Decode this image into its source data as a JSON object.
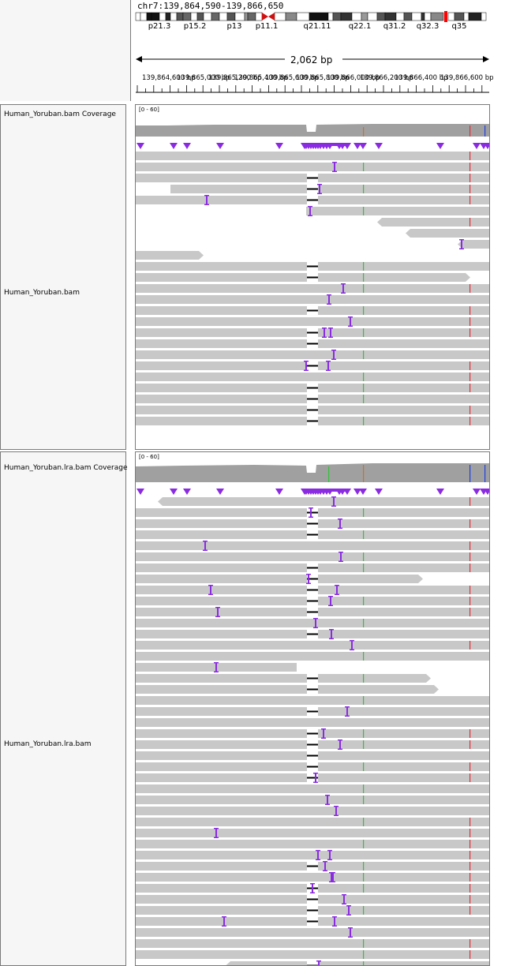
{
  "header": {
    "locus": "chr7:139,864,590-139,866,650",
    "span_label": "2,062 bp"
  },
  "ideogram": {
    "bands": [
      "p21.3",
      "p15.2",
      "p13",
      "p11.1",
      "q21.11",
      "q22.1",
      "q31.2",
      "q32.3",
      "q35"
    ]
  },
  "ruler": {
    "ticks": [
      "139,864,600 bp",
      "139,865,000 bp",
      "139,865,200 bp",
      "139,865,400 bp",
      "139,865,600 bp",
      "139,865,800 bp",
      "139,866,000 bp",
      "139,866,200 bp",
      "139,866,400 bp",
      "139,866,600 bp"
    ]
  },
  "tracks": [
    {
      "coverage_name": "Human_Yoruban.bam Coverage",
      "alignment_name": "Human_Yoruban.bam",
      "range": "[0 - 60]"
    },
    {
      "coverage_name": "Human_Yoruban.lra.bam Coverage",
      "alignment_name": "Human_Yoruban.lra.bam",
      "range": "[0 - 60]"
    }
  ],
  "colors": {
    "read": "#c8c8c8",
    "coverage": "#a0a0a0",
    "insertion": "#8a2be2",
    "mismatch_red": "#e0303a",
    "mismatch_green": "#35c03a",
    "mismatch_blue": "#2040e0",
    "centromere": "#d01010"
  }
}
